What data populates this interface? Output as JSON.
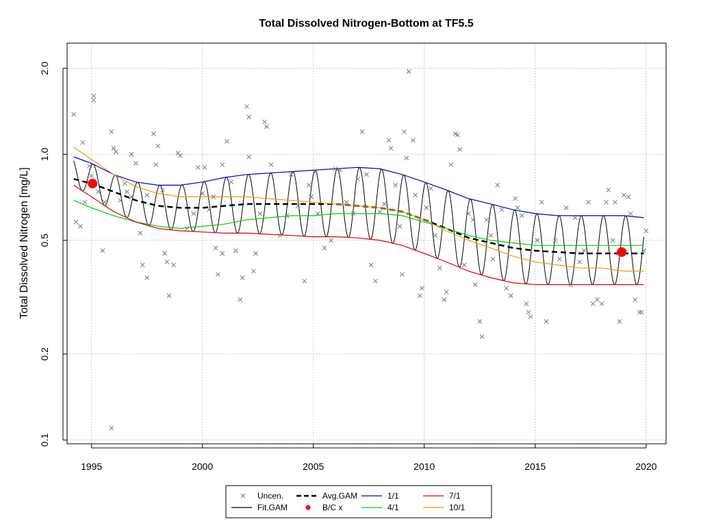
{
  "chart_data": {
    "type": "line",
    "title": "Total Dissolved Nitrogen-Bottom at TF5.5",
    "ylabel": "Total Dissolved Nitrogen [mg/L]",
    "xlabel": "",
    "x_ticks": [
      "1995",
      "2000",
      "2005",
      "2010",
      "2015",
      "2020"
    ],
    "y_ticks": [
      "0.1",
      "0.2",
      "0.5",
      "1.0",
      "2.0"
    ],
    "y_tick_values": [
      0.1,
      0.2,
      0.5,
      1.0,
      2.0
    ],
    "y_scale": "log",
    "xlim": [
      1993.9,
      2020.9
    ],
    "ylim": [
      0.097,
      2.45
    ],
    "grid": true,
    "legend_position": "bottom-center",
    "legend": [
      {
        "label": "Uncen.",
        "style": "x-marker",
        "color": "#6E7B8B"
      },
      {
        "label": "Avg.GAM",
        "style": "dashed-thick",
        "color": "#000000"
      },
      {
        "label": "1/1",
        "style": "line",
        "color": "#0000CC"
      },
      {
        "label": "7/1",
        "style": "line",
        "color": "#DD0000"
      },
      {
        "label": "Fit.GAM",
        "style": "line",
        "color": "#000000"
      },
      {
        "label": "B/C x",
        "style": "red-diamond",
        "color": "#FF0000"
      },
      {
        "label": "4/1",
        "style": "line",
        "color": "#00CC00"
      },
      {
        "label": "10/1",
        "style": "line",
        "color": "#E8A000"
      }
    ],
    "series": [
      {
        "name": "Avg.GAM",
        "color": "#000000",
        "x": [
          1994.2,
          1995,
          1996,
          1997,
          1998,
          1999,
          2000,
          2001,
          2002,
          2003,
          2004,
          2005,
          2006,
          2007,
          2008,
          2009,
          2010,
          2011,
          2012,
          2013,
          2014,
          2015,
          2016,
          2017,
          2018,
          2019,
          2019.9
        ],
        "y": [
          0.82,
          0.79,
          0.74,
          0.69,
          0.66,
          0.65,
          0.65,
          0.66,
          0.67,
          0.67,
          0.67,
          0.67,
          0.67,
          0.66,
          0.65,
          0.63,
          0.59,
          0.55,
          0.51,
          0.49,
          0.47,
          0.46,
          0.455,
          0.45,
          0.45,
          0.45,
          0.45
        ]
      },
      {
        "name": "1/1",
        "color": "#0000CC",
        "x": [
          1994.2,
          1995,
          1996,
          1997,
          1998,
          1999,
          2000,
          2001,
          2002,
          2003,
          2004,
          2005,
          2006,
          2007,
          2008,
          2009,
          2010,
          2011,
          2012,
          2013,
          2014,
          2015,
          2016,
          2017,
          2018,
          2019,
          2019.9
        ],
        "y": [
          0.98,
          0.93,
          0.85,
          0.8,
          0.78,
          0.78,
          0.8,
          0.83,
          0.85,
          0.86,
          0.87,
          0.88,
          0.89,
          0.9,
          0.89,
          0.85,
          0.8,
          0.75,
          0.7,
          0.67,
          0.64,
          0.62,
          0.61,
          0.61,
          0.61,
          0.61,
          0.6
        ]
      },
      {
        "name": "4/1",
        "color": "#00CC00",
        "x": [
          1994.2,
          1995,
          1996,
          1997,
          1998,
          1999,
          2000,
          2001,
          2002,
          2003,
          2004,
          2005,
          2006,
          2007,
          2008,
          2009,
          2010,
          2011,
          2012,
          2013,
          2014,
          2015,
          2016,
          2017,
          2018,
          2019,
          2019.9
        ],
        "y": [
          0.69,
          0.65,
          0.61,
          0.58,
          0.56,
          0.55,
          0.56,
          0.57,
          0.59,
          0.6,
          0.61,
          0.61,
          0.62,
          0.62,
          0.62,
          0.61,
          0.58,
          0.55,
          0.52,
          0.5,
          0.49,
          0.48,
          0.48,
          0.48,
          0.48,
          0.48,
          0.48
        ]
      },
      {
        "name": "7/1",
        "color": "#DD0000",
        "x": [
          1994.2,
          1995,
          1996,
          1997,
          1998,
          1999,
          2000,
          2001,
          2002,
          2003,
          2004,
          2005,
          2006,
          2007,
          2008,
          2009,
          2010,
          2011,
          2012,
          2013,
          2014,
          2015,
          2016,
          2017,
          2018,
          2019,
          2019.9
        ],
        "y": [
          0.78,
          0.71,
          0.63,
          0.58,
          0.55,
          0.54,
          0.535,
          0.53,
          0.53,
          0.525,
          0.52,
          0.515,
          0.515,
          0.51,
          0.5,
          0.48,
          0.45,
          0.42,
          0.39,
          0.37,
          0.355,
          0.35,
          0.35,
          0.35,
          0.35,
          0.35,
          0.35
        ]
      },
      {
        "name": "10/1",
        "color": "#E8A000",
        "x": [
          1994.2,
          1995,
          1996,
          1997,
          1998,
          1999,
          2000,
          2001,
          2002,
          2003,
          2004,
          2005,
          2006,
          2007,
          2008,
          2009,
          2010,
          2011,
          2012,
          2013,
          2014,
          2015,
          2016,
          2017,
          2018,
          2019,
          2019.9
        ],
        "y": [
          1.06,
          0.96,
          0.85,
          0.77,
          0.73,
          0.71,
          0.71,
          0.71,
          0.71,
          0.7,
          0.69,
          0.68,
          0.67,
          0.66,
          0.65,
          0.63,
          0.59,
          0.54,
          0.5,
          0.47,
          0.44,
          0.42,
          0.41,
          0.4,
          0.4,
          0.39,
          0.39
        ]
      }
    ],
    "fit_gam": {
      "name": "Fit.GAM",
      "color": "#000000",
      "x_start": 1994.2,
      "x_end": 2019.9
    },
    "bc_points": [
      {
        "x": 1995.05,
        "y": 0.79
      },
      {
        "x": 2018.9,
        "y": 0.455
      }
    ],
    "uncensored_points": [
      [
        1994.2,
        1.38
      ],
      [
        1994.3,
        0.58
      ],
      [
        1994.5,
        0.56
      ],
      [
        1994.6,
        1.1
      ],
      [
        1994.7,
        0.68
      ],
      [
        1994.9,
        0.91
      ],
      [
        1995.0,
        0.84
      ],
      [
        1995.1,
        1.6
      ],
      [
        1995.1,
        1.55
      ],
      [
        1995.3,
        0.74
      ],
      [
        1995.5,
        0.46
      ],
      [
        1995.6,
        0.68
      ],
      [
        1995.9,
        1.2
      ],
      [
        1995.9,
        0.11
      ],
      [
        1996.0,
        1.05
      ],
      [
        1996.1,
        1.02
      ],
      [
        1996.3,
        0.69
      ],
      [
        1996.5,
        0.79
      ],
      [
        1996.6,
        0.74
      ],
      [
        1996.8,
        0.71
      ],
      [
        1996.8,
        1.0
      ],
      [
        1997.0,
        0.93
      ],
      [
        1997.2,
        0.53
      ],
      [
        1997.3,
        0.41
      ],
      [
        1997.5,
        0.37
      ],
      [
        1997.5,
        0.72
      ],
      [
        1997.8,
        1.18
      ],
      [
        1997.9,
        0.92
      ],
      [
        1998.0,
        1.07
      ],
      [
        1998.2,
        0.75
      ],
      [
        1998.3,
        0.45
      ],
      [
        1998.4,
        0.42
      ],
      [
        1998.5,
        0.32
      ],
      [
        1998.7,
        0.41
      ],
      [
        1998.9,
        1.01
      ],
      [
        1999.0,
        0.99
      ],
      [
        1999.3,
        0.55
      ],
      [
        1999.6,
        0.62
      ],
      [
        1999.8,
        0.9
      ],
      [
        2000.0,
        0.73
      ],
      [
        2000.1,
        0.9
      ],
      [
        2000.3,
        0.64
      ],
      [
        2000.5,
        0.71
      ],
      [
        2000.6,
        0.47
      ],
      [
        2000.7,
        0.38
      ],
      [
        2000.9,
        0.45
      ],
      [
        2000.9,
        0.92
      ],
      [
        2001.1,
        1.11
      ],
      [
        2001.3,
        0.8
      ],
      [
        2001.5,
        0.46
      ],
      [
        2001.7,
        0.31
      ],
      [
        2001.8,
        0.37
      ],
      [
        2002.0,
        1.47
      ],
      [
        2002.1,
        1.35
      ],
      [
        2002.1,
        0.98
      ],
      [
        2002.3,
        0.39
      ],
      [
        2002.4,
        0.45
      ],
      [
        2002.6,
        0.62
      ],
      [
        2002.8,
        1.3
      ],
      [
        2002.9,
        1.25
      ],
      [
        2003.1,
        0.92
      ],
      [
        2003.5,
        0.52
      ],
      [
        2003.8,
        0.61
      ],
      [
        2004.0,
        0.85
      ],
      [
        2004.3,
        0.66
      ],
      [
        2004.6,
        0.36
      ],
      [
        2004.8,
        0.78
      ],
      [
        2004.9,
        0.71
      ],
      [
        2005.1,
        0.87
      ],
      [
        2005.2,
        0.62
      ],
      [
        2005.5,
        0.47
      ],
      [
        2005.8,
        0.5
      ],
      [
        2006.0,
        0.89
      ],
      [
        2006.2,
        0.88
      ],
      [
        2006.5,
        0.68
      ],
      [
        2006.8,
        0.62
      ],
      [
        2007.0,
        0.82
      ],
      [
        2007.2,
        1.2
      ],
      [
        2007.4,
        0.85
      ],
      [
        2007.6,
        0.41
      ],
      [
        2007.8,
        0.36
      ],
      [
        2008.0,
        0.63
      ],
      [
        2008.2,
        0.67
      ],
      [
        2008.4,
        1.12
      ],
      [
        2008.5,
        1.05
      ],
      [
        2008.7,
        0.78
      ],
      [
        2008.9,
        0.56
      ],
      [
        2009.0,
        0.38
      ],
      [
        2009.1,
        1.2
      ],
      [
        2009.2,
        0.97
      ],
      [
        2009.3,
        1.95
      ],
      [
        2009.5,
        1.12
      ],
      [
        2009.6,
        0.72
      ],
      [
        2009.8,
        0.32
      ],
      [
        2009.9,
        0.34
      ],
      [
        2010.1,
        0.65
      ],
      [
        2010.3,
        0.76
      ],
      [
        2010.5,
        0.52
      ],
      [
        2010.7,
        0.4
      ],
      [
        2010.9,
        0.31
      ],
      [
        2011.0,
        0.33
      ],
      [
        2011.2,
        0.92
      ],
      [
        2011.4,
        1.18
      ],
      [
        2011.5,
        1.17
      ],
      [
        2011.6,
        1.04
      ],
      [
        2011.8,
        0.41
      ],
      [
        2012.0,
        0.62
      ],
      [
        2012.2,
        0.59
      ],
      [
        2012.3,
        0.35
      ],
      [
        2012.5,
        0.26
      ],
      [
        2012.6,
        0.23
      ],
      [
        2012.8,
        0.59
      ],
      [
        2013.0,
        0.52
      ],
      [
        2013.1,
        0.43
      ],
      [
        2013.3,
        0.78
      ],
      [
        2013.5,
        0.64
      ],
      [
        2013.7,
        0.34
      ],
      [
        2013.9,
        0.32
      ],
      [
        2014.1,
        0.7
      ],
      [
        2014.2,
        0.65
      ],
      [
        2014.4,
        0.61
      ],
      [
        2014.6,
        0.3
      ],
      [
        2014.7,
        0.28
      ],
      [
        2014.8,
        0.27
      ],
      [
        2015.1,
        0.5
      ],
      [
        2015.3,
        0.68
      ],
      [
        2015.5,
        0.26
      ],
      [
        2015.9,
        0.5
      ],
      [
        2016.1,
        0.43
      ],
      [
        2016.4,
        0.65
      ],
      [
        2016.6,
        0.35
      ],
      [
        2016.8,
        0.6
      ],
      [
        2017.0,
        0.42
      ],
      [
        2017.2,
        0.46
      ],
      [
        2017.4,
        0.68
      ],
      [
        2017.6,
        0.3
      ],
      [
        2017.8,
        0.31
      ],
      [
        2018.0,
        0.3
      ],
      [
        2018.2,
        0.68
      ],
      [
        2018.3,
        0.75
      ],
      [
        2018.5,
        0.5
      ],
      [
        2018.6,
        0.68
      ],
      [
        2018.8,
        0.26
      ],
      [
        2019.0,
        0.72
      ],
      [
        2019.2,
        0.71
      ],
      [
        2019.3,
        0.62
      ],
      [
        2019.5,
        0.31
      ],
      [
        2019.7,
        0.28
      ],
      [
        2019.8,
        0.28
      ],
      [
        2019.9,
        0.46
      ],
      [
        2020.0,
        0.54
      ]
    ]
  }
}
